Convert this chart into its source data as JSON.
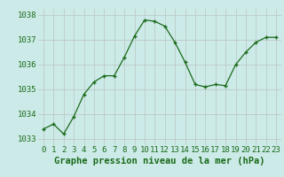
{
  "x": [
    0,
    1,
    2,
    3,
    4,
    5,
    6,
    7,
    8,
    9,
    10,
    11,
    12,
    13,
    14,
    15,
    16,
    17,
    18,
    19,
    20,
    21,
    22,
    23
  ],
  "y": [
    1033.4,
    1033.6,
    1033.2,
    1033.9,
    1034.8,
    1035.3,
    1035.55,
    1035.55,
    1036.3,
    1037.15,
    1037.8,
    1037.75,
    1037.55,
    1036.9,
    1036.1,
    1035.2,
    1035.1,
    1035.2,
    1035.15,
    1036.0,
    1036.5,
    1036.9,
    1037.1,
    1037.1
  ],
  "line_color": "#1a6b1a",
  "marker_color": "#1a6b1a",
  "bg_color": "#cceae7",
  "grid_color": "#b0b0b0",
  "xlabel": "Graphe pression niveau de la mer (hPa)",
  "xlabel_color": "#1a6b1a",
  "tick_color": "#1a6b1a",
  "ylim": [
    1032.75,
    1038.25
  ],
  "yticks": [
    1033,
    1034,
    1035,
    1036,
    1037,
    1038
  ],
  "xticks": [
    0,
    1,
    2,
    3,
    4,
    5,
    6,
    7,
    8,
    9,
    10,
    11,
    12,
    13,
    14,
    15,
    16,
    17,
    18,
    19,
    20,
    21,
    22,
    23
  ],
  "xlabel_fontsize": 7.5,
  "tick_fontsize": 6.5
}
